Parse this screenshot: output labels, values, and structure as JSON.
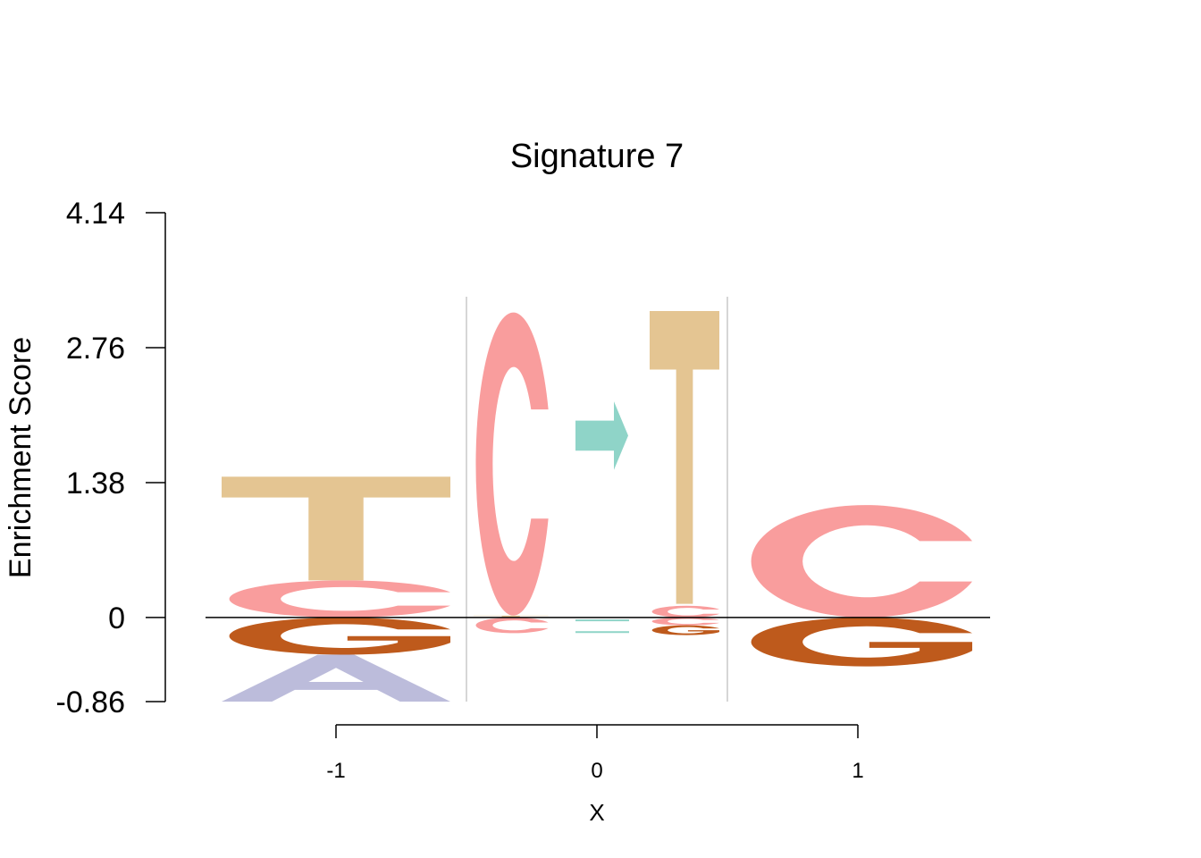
{
  "chart_data": {
    "type": "sequence-logo",
    "title": "Signature 7",
    "xlabel": "X",
    "ylabel": "Enrichment Score",
    "ylim": [
      -0.86,
      4.14
    ],
    "yticks": [
      "4.14",
      "2.76",
      "1.38",
      "0",
      "-0.86"
    ],
    "xticks": [
      "-1",
      "0",
      "1"
    ],
    "colors": {
      "A": "#bcbcdb",
      "C": "#f99d9d",
      "G": "#be5a1c",
      "T": "#e4c592",
      "arrow": "#8fd4c8",
      "separator": "#c8c8c8",
      "baseline": "#000000"
    },
    "positions": [
      {
        "x": -1,
        "pos": [
          {
            "letter": "C",
            "height": 0.38
          },
          {
            "letter": "T",
            "height": 1.06
          }
        ],
        "neg": [
          {
            "letter": "G",
            "height": 0.38
          },
          {
            "letter": "A",
            "height": 0.48
          }
        ]
      },
      {
        "x": -0.33,
        "pos": [
          {
            "letter": "T",
            "height": 0.02
          },
          {
            "letter": "C",
            "height": 3.1
          }
        ],
        "neg": [
          {
            "letter": "C",
            "height": 0.16
          }
        ]
      },
      {
        "x": 1,
        "pos": [
          {
            "letter": "C",
            "height": 1.15
          }
        ],
        "neg": [
          {
            "letter": "G",
            "height": 0.5
          }
        ]
      }
    ],
    "mutation": {
      "arrow_ylim": [
        1.51,
        2.21
      ],
      "alt_letter": "T",
      "alt_pos_height": 0.32,
      "neg": [
        {
          "letter": "C",
          "height": 0.08
        },
        {
          "letter": "G",
          "height": 0.1
        }
      ]
    }
  }
}
